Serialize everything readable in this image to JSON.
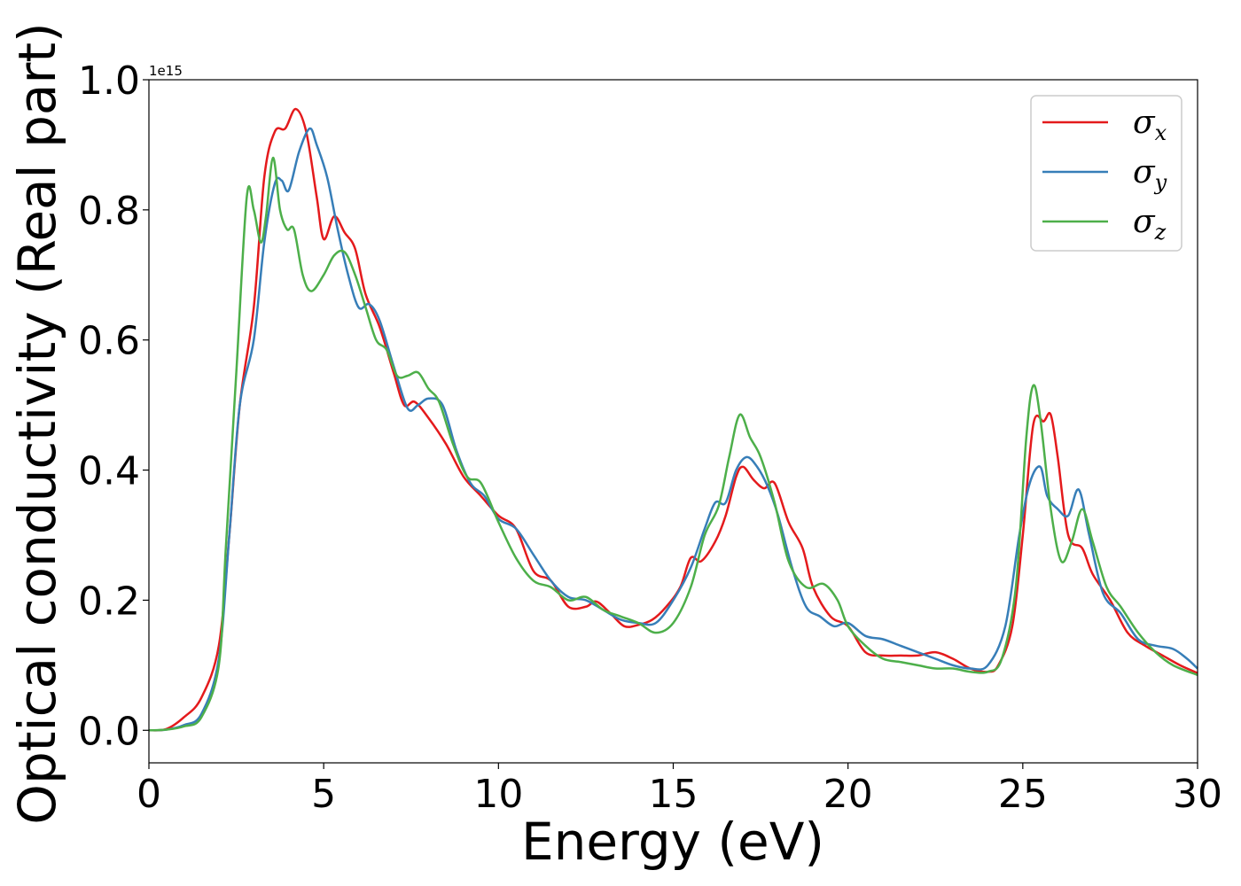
{
  "chart_data": {
    "type": "line",
    "xlabel": "Energy (eV)",
    "ylabel": "Optical conductivity (Real part)",
    "y_offset_label": "1e15",
    "xlim": [
      0,
      30
    ],
    "ylim": [
      -0.05,
      1.0
    ],
    "xticks": [
      "0",
      "5",
      "10",
      "15",
      "20",
      "25",
      "30"
    ],
    "yticks": [
      "0.0",
      "0.2",
      "0.4",
      "0.6",
      "0.8",
      "1.0"
    ],
    "grid": false,
    "legend_position": "top-right",
    "series": [
      {
        "name": "σx",
        "symbol": "σ",
        "subscript": "x",
        "color": "#e41a1c",
        "points": [
          [
            0,
            0
          ],
          [
            0.5,
            0.002
          ],
          [
            1.0,
            0.02
          ],
          [
            1.5,
            0.05
          ],
          [
            2.0,
            0.13
          ],
          [
            2.3,
            0.3
          ],
          [
            2.6,
            0.5
          ],
          [
            3.0,
            0.65
          ],
          [
            3.3,
            0.85
          ],
          [
            3.6,
            0.92
          ],
          [
            3.9,
            0.925
          ],
          [
            4.2,
            0.955
          ],
          [
            4.5,
            0.92
          ],
          [
            4.8,
            0.82
          ],
          [
            5.0,
            0.755
          ],
          [
            5.3,
            0.79
          ],
          [
            5.6,
            0.765
          ],
          [
            5.9,
            0.74
          ],
          [
            6.2,
            0.67
          ],
          [
            6.6,
            0.62
          ],
          [
            7.0,
            0.55
          ],
          [
            7.3,
            0.5
          ],
          [
            7.6,
            0.505
          ],
          [
            8.0,
            0.48
          ],
          [
            8.5,
            0.44
          ],
          [
            9.0,
            0.39
          ],
          [
            9.5,
            0.36
          ],
          [
            10.0,
            0.33
          ],
          [
            10.5,
            0.31
          ],
          [
            11.0,
            0.245
          ],
          [
            11.5,
            0.23
          ],
          [
            12.0,
            0.19
          ],
          [
            12.5,
            0.19
          ],
          [
            12.8,
            0.198
          ],
          [
            13.2,
            0.18
          ],
          [
            13.6,
            0.16
          ],
          [
            14.0,
            0.162
          ],
          [
            14.4,
            0.17
          ],
          [
            14.8,
            0.19
          ],
          [
            15.2,
            0.22
          ],
          [
            15.5,
            0.265
          ],
          [
            15.8,
            0.26
          ],
          [
            16.2,
            0.29
          ],
          [
            16.5,
            0.33
          ],
          [
            16.8,
            0.39
          ],
          [
            17.0,
            0.405
          ],
          [
            17.3,
            0.385
          ],
          [
            17.6,
            0.372
          ],
          [
            17.9,
            0.38
          ],
          [
            18.3,
            0.32
          ],
          [
            18.7,
            0.28
          ],
          [
            19.0,
            0.22
          ],
          [
            19.5,
            0.175
          ],
          [
            20.0,
            0.16
          ],
          [
            20.5,
            0.12
          ],
          [
            21.0,
            0.115
          ],
          [
            21.5,
            0.115
          ],
          [
            22.0,
            0.115
          ],
          [
            22.5,
            0.12
          ],
          [
            23.0,
            0.11
          ],
          [
            23.5,
            0.095
          ],
          [
            24.0,
            0.09
          ],
          [
            24.3,
            0.1
          ],
          [
            24.7,
            0.16
          ],
          [
            25.0,
            0.3
          ],
          [
            25.3,
            0.47
          ],
          [
            25.6,
            0.475
          ],
          [
            25.8,
            0.485
          ],
          [
            26.0,
            0.42
          ],
          [
            26.3,
            0.3
          ],
          [
            26.7,
            0.28
          ],
          [
            27.0,
            0.24
          ],
          [
            27.5,
            0.2
          ],
          [
            28.0,
            0.15
          ],
          [
            28.5,
            0.13
          ],
          [
            29.0,
            0.115
          ],
          [
            29.5,
            0.1
          ],
          [
            30.0,
            0.088
          ]
        ]
      },
      {
        "name": "σy",
        "symbol": "σ",
        "subscript": "y",
        "color": "#377eb8",
        "points": [
          [
            0,
            0
          ],
          [
            0.5,
            0.001
          ],
          [
            1.0,
            0.008
          ],
          [
            1.5,
            0.025
          ],
          [
            2.0,
            0.11
          ],
          [
            2.3,
            0.3
          ],
          [
            2.6,
            0.5
          ],
          [
            3.0,
            0.6
          ],
          [
            3.3,
            0.75
          ],
          [
            3.6,
            0.84
          ],
          [
            3.8,
            0.845
          ],
          [
            4.0,
            0.83
          ],
          [
            4.3,
            0.89
          ],
          [
            4.6,
            0.925
          ],
          [
            4.8,
            0.9
          ],
          [
            5.1,
            0.85
          ],
          [
            5.4,
            0.77
          ],
          [
            5.7,
            0.7
          ],
          [
            6.0,
            0.65
          ],
          [
            6.3,
            0.655
          ],
          [
            6.6,
            0.63
          ],
          [
            7.0,
            0.56
          ],
          [
            7.4,
            0.495
          ],
          [
            7.7,
            0.5
          ],
          [
            8.0,
            0.51
          ],
          [
            8.4,
            0.5
          ],
          [
            8.8,
            0.43
          ],
          [
            9.2,
            0.38
          ],
          [
            9.6,
            0.36
          ],
          [
            10.0,
            0.325
          ],
          [
            10.5,
            0.31
          ],
          [
            11.0,
            0.27
          ],
          [
            11.5,
            0.23
          ],
          [
            12.0,
            0.205
          ],
          [
            12.5,
            0.2
          ],
          [
            13.0,
            0.185
          ],
          [
            13.5,
            0.17
          ],
          [
            14.0,
            0.165
          ],
          [
            14.5,
            0.165
          ],
          [
            15.0,
            0.2
          ],
          [
            15.5,
            0.25
          ],
          [
            15.9,
            0.31
          ],
          [
            16.2,
            0.35
          ],
          [
            16.5,
            0.35
          ],
          [
            16.8,
            0.4
          ],
          [
            17.1,
            0.42
          ],
          [
            17.4,
            0.405
          ],
          [
            17.7,
            0.375
          ],
          [
            18.0,
            0.33
          ],
          [
            18.4,
            0.25
          ],
          [
            18.8,
            0.19
          ],
          [
            19.2,
            0.175
          ],
          [
            19.6,
            0.16
          ],
          [
            20.0,
            0.165
          ],
          [
            20.5,
            0.145
          ],
          [
            21.0,
            0.14
          ],
          [
            21.5,
            0.13
          ],
          [
            22.0,
            0.12
          ],
          [
            22.5,
            0.11
          ],
          [
            23.0,
            0.1
          ],
          [
            23.5,
            0.095
          ],
          [
            24.0,
            0.1
          ],
          [
            24.5,
            0.16
          ],
          [
            24.9,
            0.3
          ],
          [
            25.2,
            0.38
          ],
          [
            25.5,
            0.405
          ],
          [
            25.7,
            0.36
          ],
          [
            26.0,
            0.34
          ],
          [
            26.3,
            0.33
          ],
          [
            26.6,
            0.37
          ],
          [
            26.9,
            0.3
          ],
          [
            27.3,
            0.21
          ],
          [
            27.8,
            0.18
          ],
          [
            28.3,
            0.14
          ],
          [
            28.8,
            0.13
          ],
          [
            29.3,
            0.125
          ],
          [
            29.7,
            0.11
          ],
          [
            30.0,
            0.095
          ]
        ]
      },
      {
        "name": "σz",
        "symbol": "σ",
        "subscript": "z",
        "color": "#4daf4a",
        "points": [
          [
            0,
            0
          ],
          [
            0.5,
            0.001
          ],
          [
            1.0,
            0.006
          ],
          [
            1.5,
            0.02
          ],
          [
            2.0,
            0.1
          ],
          [
            2.2,
            0.28
          ],
          [
            2.5,
            0.55
          ],
          [
            2.8,
            0.82
          ],
          [
            3.0,
            0.8
          ],
          [
            3.2,
            0.75
          ],
          [
            3.35,
            0.79
          ],
          [
            3.55,
            0.88
          ],
          [
            3.75,
            0.8
          ],
          [
            3.95,
            0.77
          ],
          [
            4.15,
            0.77
          ],
          [
            4.4,
            0.7
          ],
          [
            4.65,
            0.675
          ],
          [
            5.0,
            0.7
          ],
          [
            5.3,
            0.73
          ],
          [
            5.6,
            0.735
          ],
          [
            5.9,
            0.7
          ],
          [
            6.2,
            0.65
          ],
          [
            6.5,
            0.6
          ],
          [
            6.8,
            0.585
          ],
          [
            7.1,
            0.545
          ],
          [
            7.4,
            0.545
          ],
          [
            7.7,
            0.55
          ],
          [
            8.0,
            0.525
          ],
          [
            8.3,
            0.505
          ],
          [
            8.7,
            0.44
          ],
          [
            9.1,
            0.39
          ],
          [
            9.5,
            0.38
          ],
          [
            10.0,
            0.32
          ],
          [
            10.5,
            0.265
          ],
          [
            11.0,
            0.23
          ],
          [
            11.5,
            0.22
          ],
          [
            12.0,
            0.2
          ],
          [
            12.5,
            0.205
          ],
          [
            13.0,
            0.185
          ],
          [
            13.5,
            0.175
          ],
          [
            14.0,
            0.165
          ],
          [
            14.5,
            0.15
          ],
          [
            15.0,
            0.165
          ],
          [
            15.5,
            0.22
          ],
          [
            15.9,
            0.3
          ],
          [
            16.3,
            0.345
          ],
          [
            16.6,
            0.42
          ],
          [
            16.9,
            0.485
          ],
          [
            17.2,
            0.45
          ],
          [
            17.5,
            0.42
          ],
          [
            17.9,
            0.35
          ],
          [
            18.3,
            0.26
          ],
          [
            18.8,
            0.22
          ],
          [
            19.3,
            0.225
          ],
          [
            19.7,
            0.2
          ],
          [
            20.0,
            0.16
          ],
          [
            20.5,
            0.13
          ],
          [
            21.0,
            0.11
          ],
          [
            21.5,
            0.105
          ],
          [
            22.0,
            0.1
          ],
          [
            22.5,
            0.095
          ],
          [
            23.0,
            0.095
          ],
          [
            23.5,
            0.09
          ],
          [
            24.0,
            0.09
          ],
          [
            24.4,
            0.11
          ],
          [
            24.8,
            0.22
          ],
          [
            25.1,
            0.45
          ],
          [
            25.3,
            0.53
          ],
          [
            25.5,
            0.48
          ],
          [
            25.8,
            0.34
          ],
          [
            26.1,
            0.26
          ],
          [
            26.4,
            0.29
          ],
          [
            26.7,
            0.34
          ],
          [
            27.0,
            0.29
          ],
          [
            27.4,
            0.22
          ],
          [
            27.8,
            0.19
          ],
          [
            28.3,
            0.15
          ],
          [
            28.8,
            0.12
          ],
          [
            29.3,
            0.1
          ],
          [
            30.0,
            0.085
          ]
        ]
      }
    ]
  }
}
